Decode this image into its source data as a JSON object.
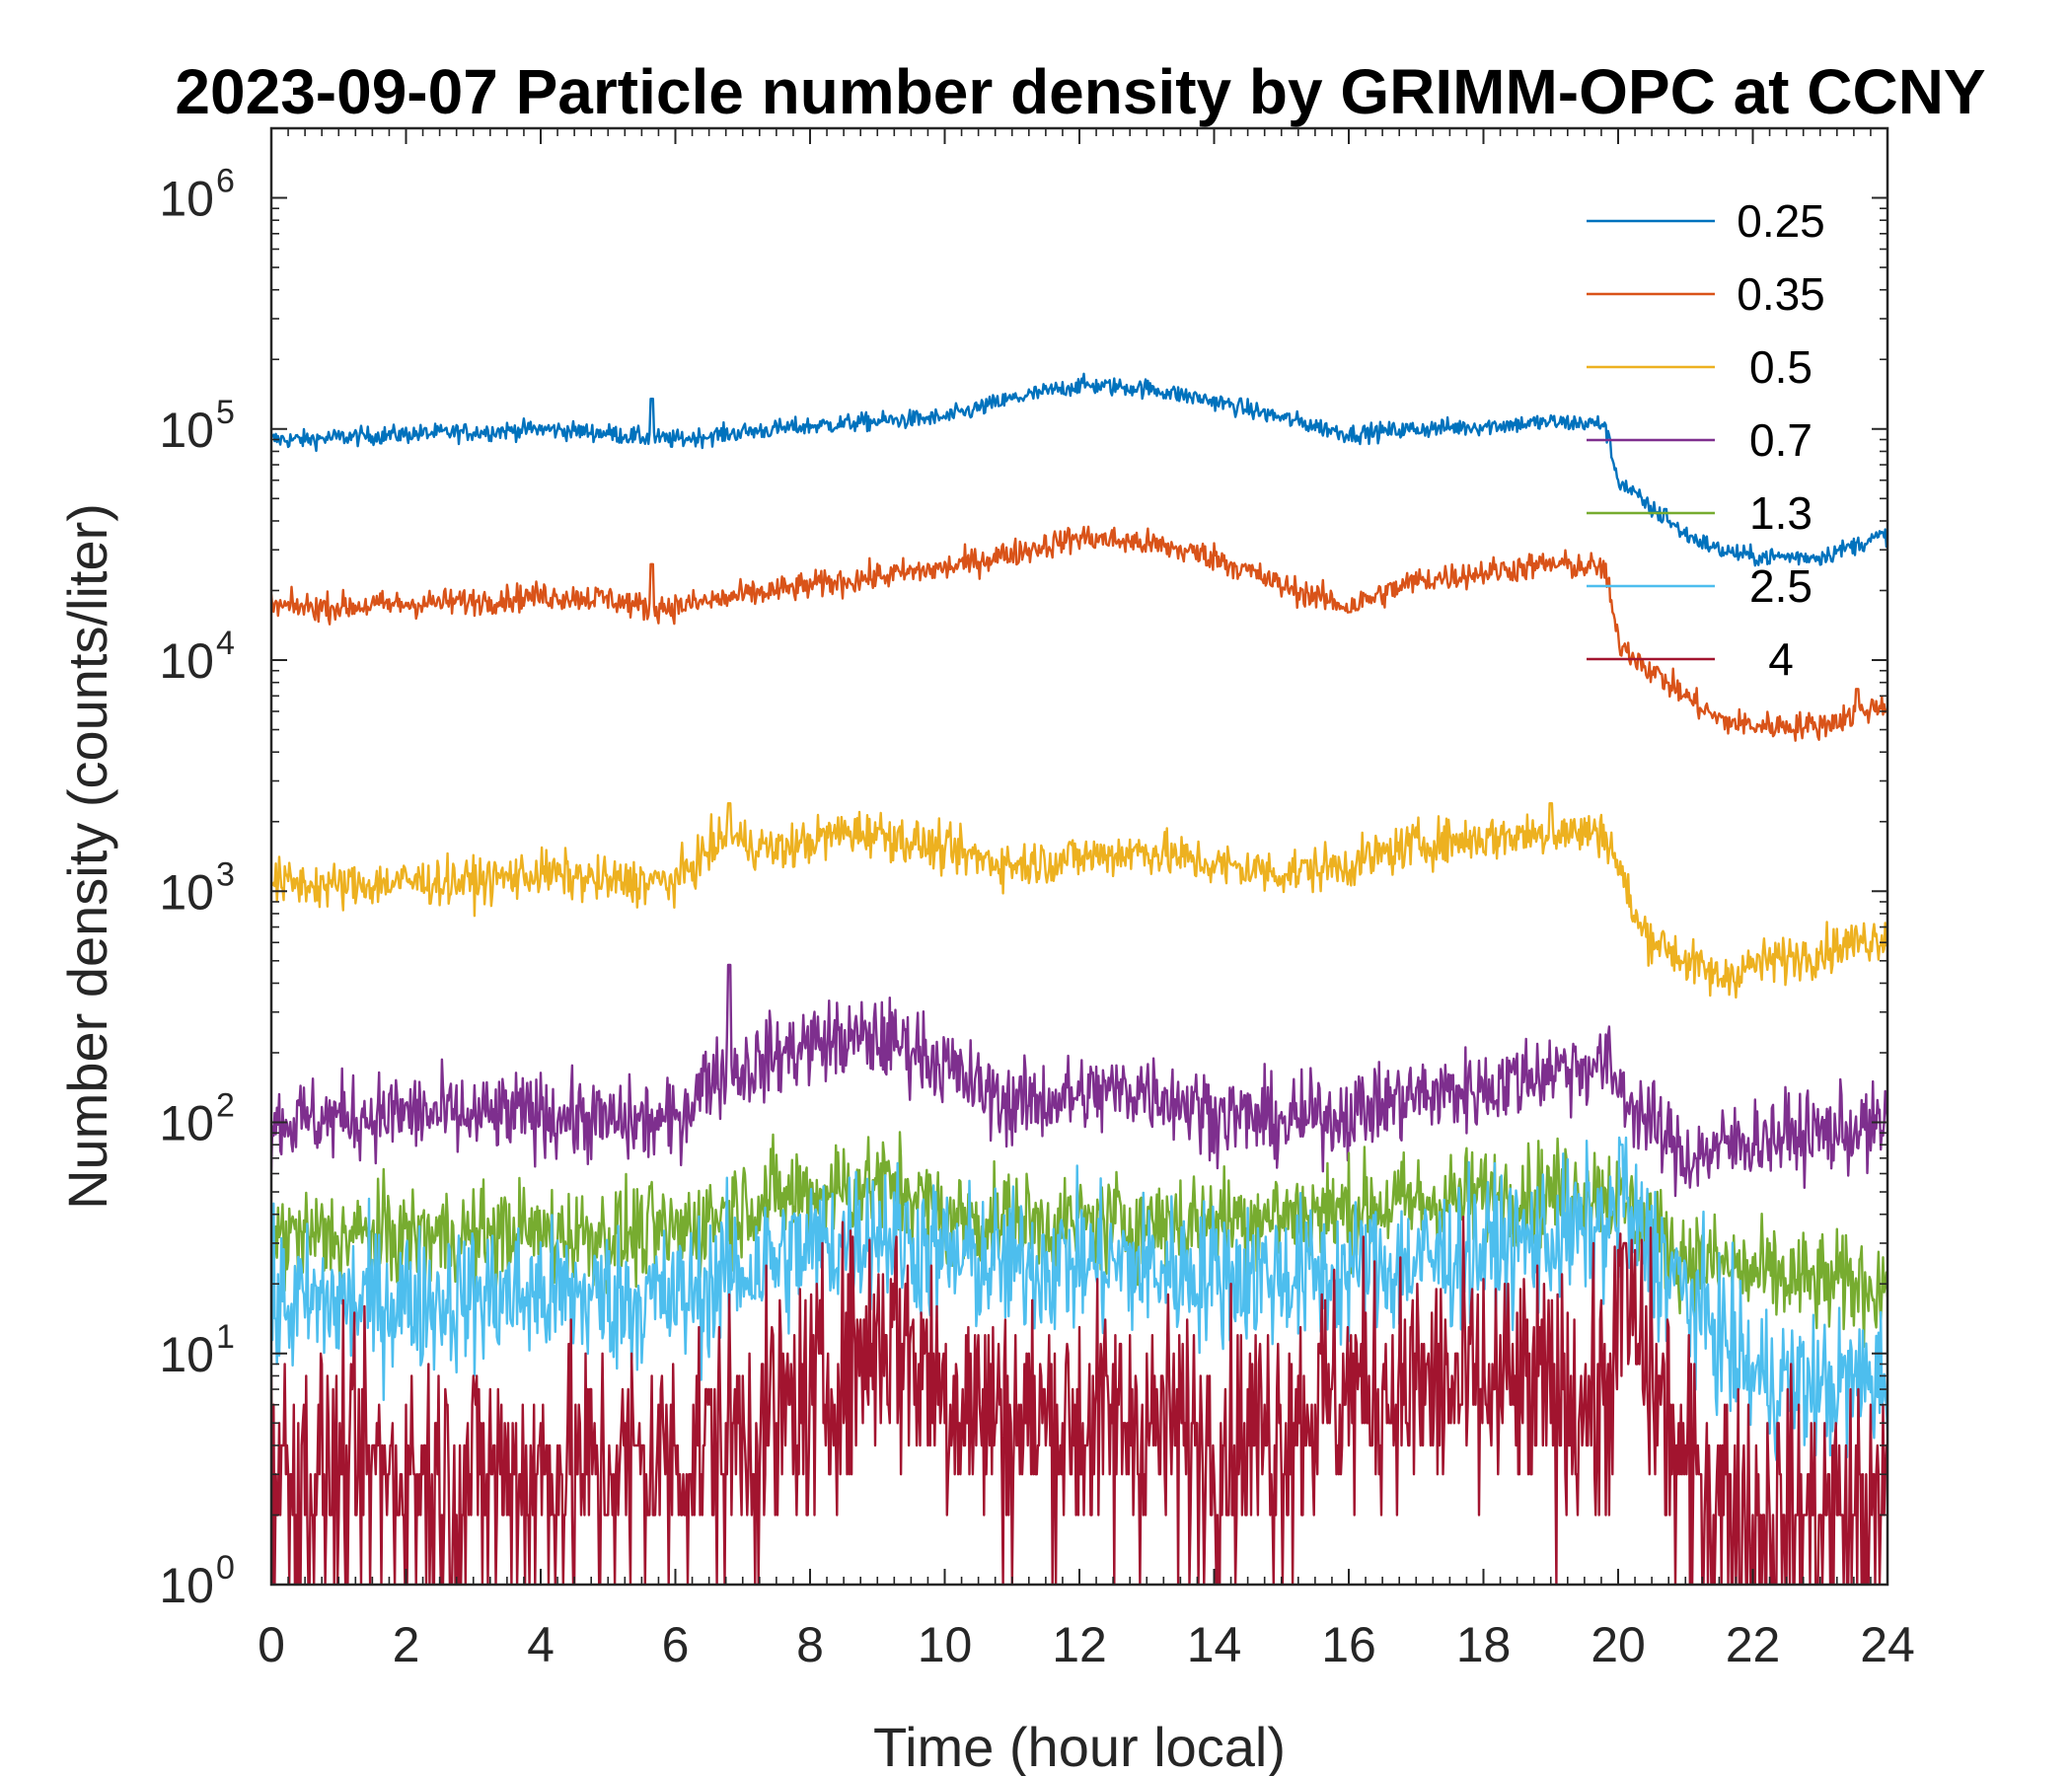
{
  "chart_data": {
    "type": "line",
    "title": "2023-09-07 Particle number density by GRIMM-OPC at CCNY",
    "xlabel": "Time (hour local)",
    "ylabel": "Number density (counts/liter)",
    "xlim": [
      0,
      24
    ],
    "ylim": [
      1,
      2000000
    ],
    "yscale": "log",
    "xticks": [
      0,
      2,
      4,
      6,
      8,
      10,
      12,
      14,
      16,
      18,
      20,
      22,
      24
    ],
    "xtick_labels": [
      "0",
      "2",
      "4",
      "6",
      "8",
      "10",
      "12",
      "14",
      "16",
      "18",
      "20",
      "22",
      "24"
    ],
    "yticks": [
      {
        "value": 1,
        "base": "10",
        "exp": "0"
      },
      {
        "value": 10,
        "base": "10",
        "exp": "1"
      },
      {
        "value": 100,
        "base": "10",
        "exp": "2"
      },
      {
        "value": 1000,
        "base": "10",
        "exp": "3"
      },
      {
        "value": 10000,
        "base": "10",
        "exp": "4"
      },
      {
        "value": 100000,
        "base": "10",
        "exp": "5"
      },
      {
        "value": 1000000,
        "base": "10",
        "exp": "6"
      }
    ],
    "legend_position": "top-right",
    "series": [
      {
        "name": "0.25",
        "legend_label": "0.25",
        "color": "#0072BD",
        "noise": 0.02,
        "x": [
          0,
          0.5,
          1,
          2,
          3,
          4,
          5,
          5.5,
          6,
          7,
          8,
          9,
          10,
          11,
          12,
          13,
          14,
          15,
          16,
          17,
          18,
          19,
          19.8,
          20,
          20.5,
          21,
          21.5,
          22,
          23,
          24
        ],
        "y": [
          90000,
          90000,
          92000,
          95000,
          97000,
          100000,
          96000,
          92000,
          90000,
          97000,
          103000,
          108000,
          112000,
          135000,
          155000,
          150000,
          132000,
          112000,
          95000,
          100000,
          103000,
          107000,
          105000,
          60000,
          45000,
          35000,
          30000,
          28000,
          28000,
          35000
        ],
        "spikes": [
          {
            "x": 5.65,
            "y": 135000
          },
          {
            "x": 20.7,
            "y": 45000
          }
        ]
      },
      {
        "name": "0.35",
        "legend_label": "0.35",
        "color": "#D95319",
        "noise": 0.03,
        "x": [
          0,
          1,
          2,
          3,
          4,
          5,
          5.5,
          6,
          7,
          8,
          9,
          10,
          11,
          12,
          13,
          14,
          15,
          16,
          17,
          18,
          19,
          19.8,
          20,
          20.5,
          21,
          21.5,
          22,
          23,
          24
        ],
        "y": [
          17000,
          17000,
          17500,
          18000,
          19000,
          18500,
          17000,
          17000,
          19000,
          21000,
          23000,
          25000,
          29000,
          34000,
          32000,
          28000,
          21000,
          17000,
          22000,
          24000,
          26000,
          25000,
          12000,
          9000,
          7000,
          5500,
          5200,
          5200,
          6500
        ],
        "spikes": [
          {
            "x": 5.65,
            "y": 26000
          },
          {
            "x": 23.55,
            "y": 7500
          }
        ]
      },
      {
        "name": "0.5",
        "legend_label": "0.5",
        "color": "#EDB120",
        "noise": 0.05,
        "x": [
          0,
          1,
          2,
          3,
          4,
          5,
          6,
          6.6,
          6.8,
          7.5,
          8.5,
          9,
          10,
          11,
          12,
          13,
          14,
          15,
          16,
          17,
          18,
          19,
          19.8,
          20,
          20.3,
          21,
          21.5,
          22,
          23,
          24
        ],
        "y": [
          1100,
          1050,
          1100,
          1100,
          1200,
          1100,
          1100,
          1600,
          1700,
          1500,
          1800,
          1800,
          1500,
          1300,
          1400,
          1500,
          1300,
          1200,
          1300,
          1600,
          1700,
          1800,
          1800,
          1300,
          700,
          500,
          420,
          480,
          550,
          650
        ],
        "spikes": [
          {
            "x": 6.8,
            "y": 2400
          },
          {
            "x": 19.0,
            "y": 2400
          }
        ]
      },
      {
        "name": "0.7",
        "legend_label": "0.7",
        "color": "#7E2F8E",
        "noise": 0.09,
        "x": [
          0,
          1,
          2,
          3,
          4,
          5,
          6,
          6.5,
          7,
          8,
          9,
          9.6,
          10.5,
          11,
          12,
          13,
          14,
          15,
          16,
          17,
          18,
          19,
          19.8,
          20.2,
          21,
          22,
          23,
          24
        ],
        "y": [
          100,
          105,
          110,
          105,
          110,
          100,
          100,
          160,
          170,
          220,
          230,
          210,
          140,
          120,
          130,
          140,
          110,
          100,
          110,
          130,
          140,
          170,
          180,
          120,
          70,
          85,
          90,
          95
        ],
        "spikes": [
          {
            "x": 6.8,
            "y": 480
          }
        ]
      },
      {
        "name": "1.3",
        "legend_label": "1.3",
        "color": "#77AC30",
        "noise": 0.11,
        "x": [
          0,
          2,
          4,
          6,
          7,
          8,
          9,
          9.5,
          10,
          12,
          14,
          16,
          18,
          19,
          19.8,
          20.5,
          21,
          22,
          23,
          24
        ],
        "y": [
          32,
          32,
          33,
          33,
          45,
          50,
          55,
          50,
          38,
          36,
          38,
          42,
          48,
          50,
          52,
          34,
          26,
          22,
          20,
          20
        ]
      },
      {
        "name": "2.5",
        "legend_label": "2.5",
        "color": "#4DBEEE",
        "noise": 0.16,
        "x": [
          0,
          2,
          4,
          6,
          7,
          8,
          9,
          10,
          11,
          12,
          14,
          16,
          18,
          19.8,
          20.1,
          21,
          22,
          23,
          24
        ],
        "y": [
          16,
          17,
          18,
          17,
          23,
          28,
          35,
          26,
          24,
          25,
          22,
          22,
          28,
          35,
          40,
          18,
          8,
          7,
          8
        ],
        "spikes": [
          {
            "x": 20.05,
            "y": 80
          }
        ]
      },
      {
        "name": "4",
        "legend_label": "4",
        "color": "#A2142F",
        "noise": 0.28,
        "x": [
          0,
          2,
          4,
          6,
          7,
          8,
          8.5,
          9.2,
          10,
          11,
          12,
          13,
          14,
          15,
          16,
          17,
          18,
          19,
          19.8,
          20.1,
          21,
          22,
          23,
          24
        ],
        "y": [
          3,
          3,
          3,
          3.5,
          4.5,
          6,
          9,
          13,
          7,
          5,
          5,
          5,
          4,
          5,
          7,
          7,
          7,
          6.5,
          6,
          16,
          3,
          2,
          2,
          2
        ],
        "spikes": [
          {
            "x": 20.1,
            "y": 30
          }
        ]
      }
    ]
  }
}
